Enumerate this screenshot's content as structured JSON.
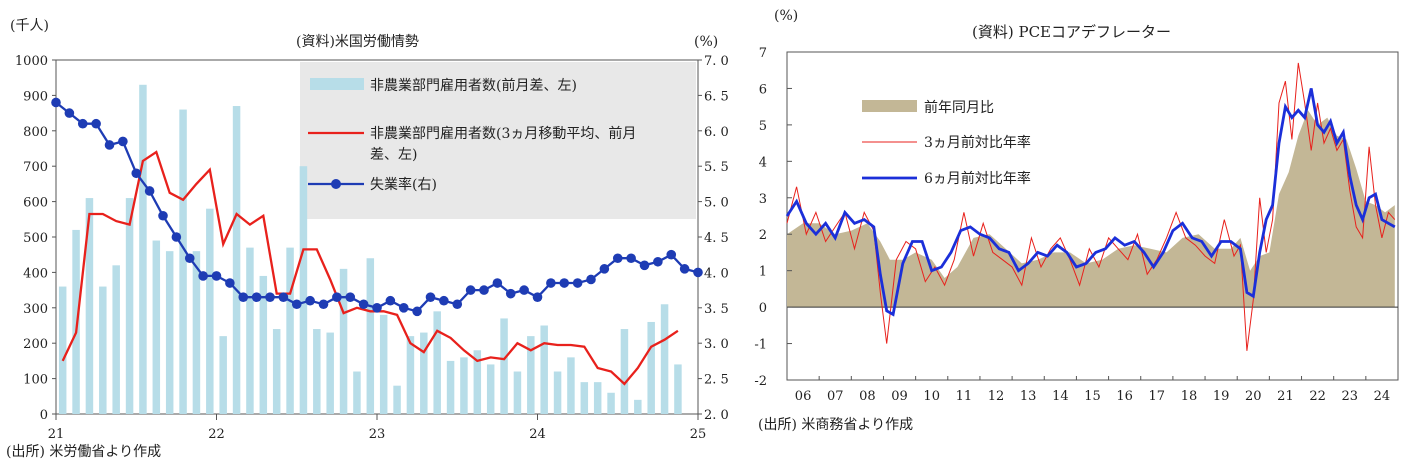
{
  "chart_data": [
    {
      "type": "bar",
      "title": "(資料)米国労働情勢",
      "source": "(出所) 米労働省より作成",
      "ylabel": "(千人)",
      "y2label": "(%)",
      "ylim": [
        0,
        1000
      ],
      "y2lim": [
        2.0,
        7.0
      ],
      "yticks": [
        "0",
        "100",
        "200",
        "300",
        "400",
        "500",
        "600",
        "700",
        "800",
        "900",
        "1000"
      ],
      "y2ticks": [
        "2. 0",
        "2. 5",
        "3. 0",
        "3. 5",
        "4. 0",
        "4. 5",
        "5. 0",
        "5. 5",
        "6. 0",
        "6. 5",
        "7. 0"
      ],
      "xticks": [
        "21",
        "22",
        "23",
        "24",
        "25"
      ],
      "legend_position": "top-right",
      "series": [
        {
          "name": "非農業部門雇用者数(前月差、左)",
          "kind": "bar",
          "color": "#b7dde8",
          "values": [
            360,
            520,
            610,
            360,
            420,
            610,
            930,
            490,
            460,
            860,
            460,
            580,
            220,
            870,
            470,
            390,
            240,
            470,
            700,
            240,
            230,
            410,
            120,
            440,
            280,
            80,
            220,
            230,
            290,
            150,
            160,
            180,
            140,
            270,
            120,
            220,
            250,
            120,
            160,
            90,
            90,
            60,
            240,
            40,
            260,
            310,
            140
          ]
        },
        {
          "name": "非農業部門雇用者数(3ヵ月移動平均、前月差、左)",
          "kind": "line",
          "color": "#e8211c",
          "values": [
            150,
            230,
            565,
            565,
            545,
            535,
            715,
            740,
            625,
            605,
            650,
            690,
            480,
            565,
            535,
            560,
            340,
            340,
            465,
            465,
            380,
            285,
            300,
            290,
            290,
            280,
            200,
            175,
            235,
            215,
            180,
            150,
            160,
            155,
            200,
            180,
            200,
            195,
            195,
            190,
            130,
            120,
            85,
            130,
            190,
            210,
            235
          ]
        },
        {
          "name": "失業率(右)",
          "kind": "line",
          "color": "#1e3cb4",
          "values": [
            6.4,
            6.25,
            6.1,
            6.1,
            5.8,
            5.85,
            5.4,
            5.15,
            4.8,
            4.5,
            4.2,
            3.95,
            3.95,
            3.85,
            3.65,
            3.65,
            3.65,
            3.65,
            3.55,
            3.6,
            3.55,
            3.65,
            3.65,
            3.55,
            3.5,
            3.6,
            3.5,
            3.45,
            3.65,
            3.6,
            3.55,
            3.75,
            3.75,
            3.85,
            3.7,
            3.75,
            3.65,
            3.85,
            3.85,
            3.85,
            3.9,
            4.05,
            4.2,
            4.2,
            4.1,
            4.15,
            4.25,
            4.05,
            4.0
          ]
        }
      ]
    },
    {
      "type": "area",
      "title": "(資料) PCEコアデフレーター",
      "source": "(出所) 米商務省より作成",
      "ylabel": "(%)",
      "ylim": [
        -2,
        7
      ],
      "yticks": [
        "-2",
        "-1",
        "0",
        "1",
        "2",
        "3",
        "4",
        "5",
        "6",
        "7"
      ],
      "xticks": [
        "06",
        "07",
        "08",
        "09",
        "10",
        "11",
        "12",
        "13",
        "14",
        "15",
        "16",
        "17",
        "18",
        "19",
        "20",
        "21",
        "22",
        "23",
        "24"
      ],
      "legend_position": "top-left",
      "series": [
        {
          "name": "前年同月比",
          "kind": "area",
          "color": "#c3b796",
          "points": [
            [
              2006.0,
              2.0
            ],
            [
              2006.5,
              2.3
            ],
            [
              2007.0,
              2.3
            ],
            [
              2007.5,
              2.0
            ],
            [
              2008.0,
              2.1
            ],
            [
              2008.5,
              2.3
            ],
            [
              2008.9,
              1.8
            ],
            [
              2009.2,
              1.3
            ],
            [
              2009.6,
              1.3
            ],
            [
              2010.0,
              1.5
            ],
            [
              2010.5,
              1.3
            ],
            [
              2010.9,
              0.8
            ],
            [
              2011.3,
              1.1
            ],
            [
              2011.8,
              1.9
            ],
            [
              2012.3,
              2.0
            ],
            [
              2012.8,
              1.6
            ],
            [
              2013.3,
              1.2
            ],
            [
              2013.8,
              1.3
            ],
            [
              2014.3,
              1.5
            ],
            [
              2014.8,
              1.5
            ],
            [
              2015.3,
              1.2
            ],
            [
              2015.8,
              1.3
            ],
            [
              2016.3,
              1.6
            ],
            [
              2016.8,
              1.7
            ],
            [
              2017.3,
              1.6
            ],
            [
              2017.8,
              1.5
            ],
            [
              2018.3,
              1.9
            ],
            [
              2018.8,
              2.0
            ],
            [
              2019.3,
              1.6
            ],
            [
              2019.8,
              1.6
            ],
            [
              2020.1,
              1.9
            ],
            [
              2020.4,
              1.0
            ],
            [
              2020.7,
              1.4
            ],
            [
              2021.0,
              1.5
            ],
            [
              2021.3,
              3.1
            ],
            [
              2021.6,
              3.7
            ],
            [
              2021.9,
              4.7
            ],
            [
              2022.2,
              5.4
            ],
            [
              2022.5,
              5.0
            ],
            [
              2022.8,
              5.2
            ],
            [
              2023.1,
              4.7
            ],
            [
              2023.4,
              4.6
            ],
            [
              2023.7,
              3.8
            ],
            [
              2024.0,
              2.9
            ],
            [
              2024.3,
              2.8
            ],
            [
              2024.6,
              2.6
            ],
            [
              2024.9,
              2.8
            ]
          ]
        },
        {
          "name": "3ヵ月前対比年率",
          "kind": "line",
          "color": "#e8211c",
          "points": [
            [
              2006.0,
              2.3
            ],
            [
              2006.3,
              3.3
            ],
            [
              2006.6,
              2.0
            ],
            [
              2006.9,
              2.6
            ],
            [
              2007.2,
              1.8
            ],
            [
              2007.5,
              2.2
            ],
            [
              2007.8,
              2.6
            ],
            [
              2008.1,
              1.6
            ],
            [
              2008.4,
              2.6
            ],
            [
              2008.7,
              2.1
            ],
            [
              2008.9,
              0.4
            ],
            [
              2009.1,
              -1.0
            ],
            [
              2009.4,
              1.3
            ],
            [
              2009.7,
              1.8
            ],
            [
              2010.0,
              1.6
            ],
            [
              2010.3,
              0.7
            ],
            [
              2010.6,
              1.1
            ],
            [
              2010.9,
              0.6
            ],
            [
              2011.2,
              1.3
            ],
            [
              2011.5,
              2.6
            ],
            [
              2011.8,
              1.4
            ],
            [
              2012.1,
              2.3
            ],
            [
              2012.4,
              1.5
            ],
            [
              2012.7,
              1.3
            ],
            [
              2013.0,
              1.1
            ],
            [
              2013.3,
              0.6
            ],
            [
              2013.6,
              1.9
            ],
            [
              2013.9,
              1.1
            ],
            [
              2014.2,
              1.6
            ],
            [
              2014.5,
              1.9
            ],
            [
              2014.8,
              1.3
            ],
            [
              2015.1,
              0.6
            ],
            [
              2015.4,
              1.6
            ],
            [
              2015.7,
              1.1
            ],
            [
              2016.0,
              1.9
            ],
            [
              2016.3,
              1.6
            ],
            [
              2016.6,
              1.3
            ],
            [
              2016.9,
              2.0
            ],
            [
              2017.2,
              0.9
            ],
            [
              2017.5,
              1.3
            ],
            [
              2017.8,
              1.9
            ],
            [
              2018.1,
              2.6
            ],
            [
              2018.4,
              1.9
            ],
            [
              2018.7,
              1.7
            ],
            [
              2019.0,
              1.4
            ],
            [
              2019.3,
              1.2
            ],
            [
              2019.6,
              2.4
            ],
            [
              2019.9,
              1.4
            ],
            [
              2020.1,
              1.7
            ],
            [
              2020.3,
              -1.2
            ],
            [
              2020.5,
              0.2
            ],
            [
              2020.7,
              3.0
            ],
            [
              2020.9,
              1.5
            ],
            [
              2021.1,
              2.4
            ],
            [
              2021.3,
              5.6
            ],
            [
              2021.5,
              6.2
            ],
            [
              2021.7,
              4.6
            ],
            [
              2021.9,
              6.7
            ],
            [
              2022.1,
              5.6
            ],
            [
              2022.3,
              4.3
            ],
            [
              2022.5,
              5.6
            ],
            [
              2022.7,
              4.5
            ],
            [
              2022.9,
              4.9
            ],
            [
              2023.1,
              4.3
            ],
            [
              2023.3,
              4.6
            ],
            [
              2023.5,
              3.2
            ],
            [
              2023.7,
              2.2
            ],
            [
              2023.9,
              1.9
            ],
            [
              2024.1,
              4.4
            ],
            [
              2024.3,
              2.8
            ],
            [
              2024.5,
              1.9
            ],
            [
              2024.7,
              2.6
            ],
            [
              2024.9,
              2.4
            ]
          ]
        },
        {
          "name": "6ヵ月前対比年率",
          "kind": "line",
          "color": "#1b2fd9",
          "points": [
            [
              2006.0,
              2.5
            ],
            [
              2006.3,
              2.9
            ],
            [
              2006.6,
              2.3
            ],
            [
              2006.9,
              2.0
            ],
            [
              2007.2,
              2.3
            ],
            [
              2007.5,
              1.9
            ],
            [
              2007.8,
              2.6
            ],
            [
              2008.1,
              2.3
            ],
            [
              2008.4,
              2.4
            ],
            [
              2008.7,
              2.2
            ],
            [
              2008.9,
              0.9
            ],
            [
              2009.1,
              -0.1
            ],
            [
              2009.3,
              -0.2
            ],
            [
              2009.6,
              1.2
            ],
            [
              2009.9,
              1.8
            ],
            [
              2010.2,
              1.8
            ],
            [
              2010.5,
              1.0
            ],
            [
              2010.8,
              1.1
            ],
            [
              2011.1,
              1.5
            ],
            [
              2011.4,
              2.1
            ],
            [
              2011.7,
              2.2
            ],
            [
              2012.0,
              2.0
            ],
            [
              2012.3,
              1.9
            ],
            [
              2012.6,
              1.6
            ],
            [
              2012.9,
              1.5
            ],
            [
              2013.2,
              1.0
            ],
            [
              2013.5,
              1.2
            ],
            [
              2013.8,
              1.5
            ],
            [
              2014.1,
              1.4
            ],
            [
              2014.4,
              1.7
            ],
            [
              2014.7,
              1.5
            ],
            [
              2015.0,
              1.1
            ],
            [
              2015.3,
              1.2
            ],
            [
              2015.6,
              1.5
            ],
            [
              2015.9,
              1.6
            ],
            [
              2016.2,
              1.9
            ],
            [
              2016.5,
              1.7
            ],
            [
              2016.8,
              1.8
            ],
            [
              2017.1,
              1.5
            ],
            [
              2017.4,
              1.1
            ],
            [
              2017.7,
              1.5
            ],
            [
              2018.0,
              2.1
            ],
            [
              2018.3,
              2.3
            ],
            [
              2018.6,
              1.9
            ],
            [
              2018.9,
              1.8
            ],
            [
              2019.2,
              1.4
            ],
            [
              2019.5,
              1.8
            ],
            [
              2019.8,
              1.8
            ],
            [
              2020.1,
              1.6
            ],
            [
              2020.3,
              0.4
            ],
            [
              2020.5,
              0.3
            ],
            [
              2020.7,
              1.5
            ],
            [
              2020.9,
              2.4
            ],
            [
              2021.1,
              2.8
            ],
            [
              2021.3,
              4.5
            ],
            [
              2021.5,
              5.5
            ],
            [
              2021.7,
              5.2
            ],
            [
              2021.9,
              5.4
            ],
            [
              2022.1,
              5.2
            ],
            [
              2022.3,
              6.0
            ],
            [
              2022.5,
              5.0
            ],
            [
              2022.7,
              4.8
            ],
            [
              2022.9,
              5.1
            ],
            [
              2023.1,
              4.5
            ],
            [
              2023.3,
              4.8
            ],
            [
              2023.5,
              3.6
            ],
            [
              2023.7,
              2.8
            ],
            [
              2023.9,
              2.4
            ],
            [
              2024.1,
              3.0
            ],
            [
              2024.3,
              3.1
            ],
            [
              2024.5,
              2.4
            ],
            [
              2024.7,
              2.3
            ],
            [
              2024.9,
              2.2
            ]
          ]
        }
      ]
    }
  ]
}
